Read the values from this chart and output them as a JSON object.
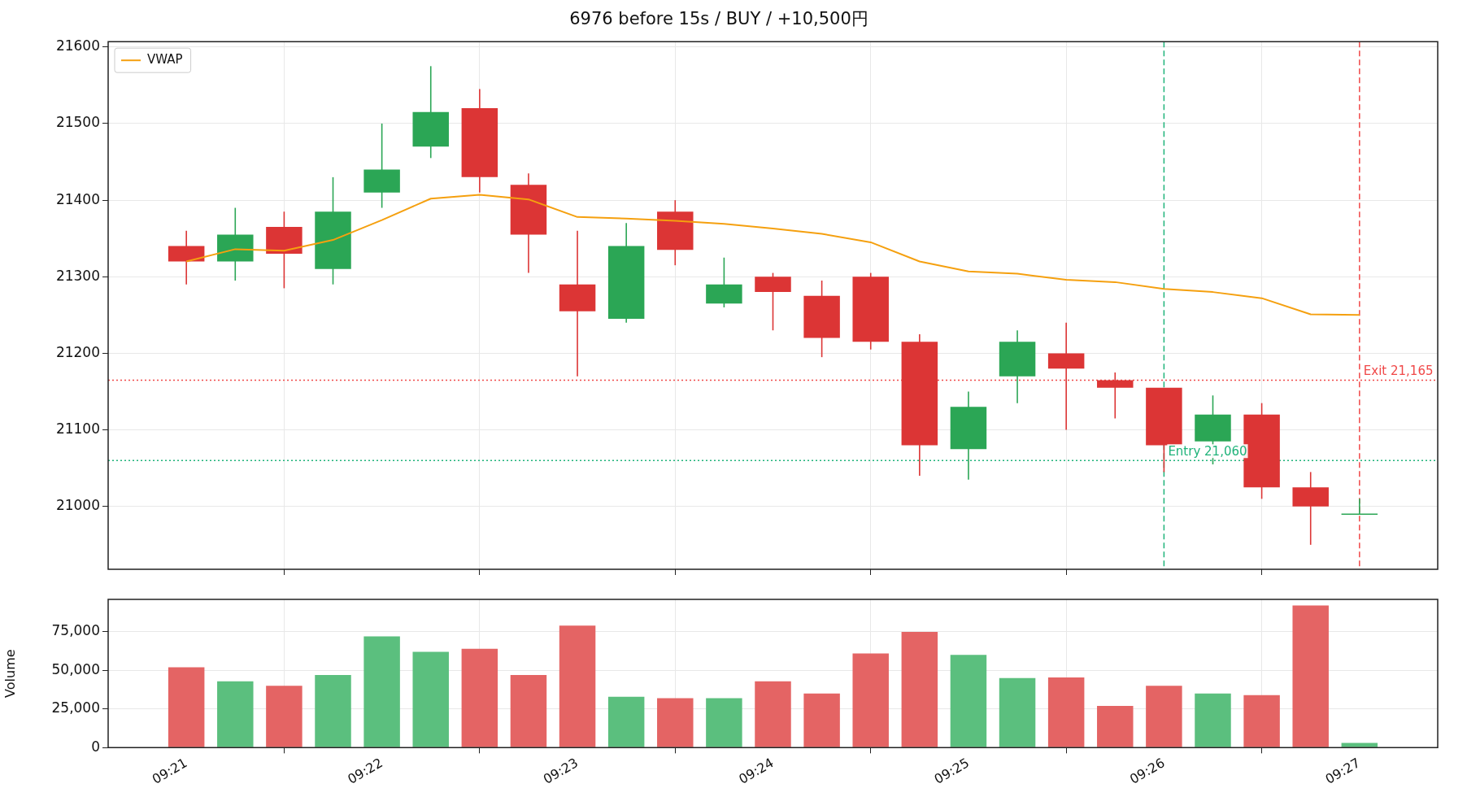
{
  "chart_data": [
    {
      "type": "candlestick",
      "title": "6976 before 15s / BUY / +10,500円",
      "categories": [
        "09:21",
        null,
        null,
        null,
        "09:22",
        null,
        null,
        null,
        "09:23",
        null,
        null,
        null,
        "09:24",
        null,
        null,
        null,
        "09:25",
        null,
        null,
        null,
        "09:26",
        null,
        null,
        null,
        "09:27"
      ],
      "ohlc": [
        [
          21340,
          21360,
          21290,
          21320
        ],
        [
          21320,
          21390,
          21295,
          21355
        ],
        [
          21365,
          21385,
          21285,
          21330
        ],
        [
          21310,
          21430,
          21290,
          21385
        ],
        [
          21410,
          21500,
          21390,
          21440
        ],
        [
          21470,
          21575,
          21455,
          21515
        ],
        [
          21520,
          21545,
          21410,
          21430
        ],
        [
          21420,
          21435,
          21305,
          21355
        ],
        [
          21290,
          21360,
          21170,
          21255
        ],
        [
          21245,
          21370,
          21240,
          21340
        ],
        [
          21385,
          21400,
          21315,
          21335
        ],
        [
          21265,
          21325,
          21260,
          21290
        ],
        [
          21300,
          21305,
          21230,
          21280
        ],
        [
          21275,
          21295,
          21195,
          21220
        ],
        [
          21300,
          21305,
          21205,
          21215
        ],
        [
          21215,
          21225,
          21040,
          21080
        ],
        [
          21075,
          21150,
          21035,
          21130
        ],
        [
          21170,
          21230,
          21135,
          21215
        ],
        [
          21200,
          21240,
          21100,
          21180
        ],
        [
          21165,
          21175,
          21115,
          21155
        ],
        [
          21155,
          21155,
          21045,
          21080
        ],
        [
          21085,
          21145,
          21055,
          21120
        ],
        [
          21120,
          21135,
          21010,
          21025
        ],
        [
          21025,
          21045,
          20950,
          21000
        ],
        [
          20990,
          21010,
          20990,
          20990
        ]
      ],
      "colors": [
        "#dc3535",
        "#2ba655",
        "#dc3535",
        "#2ba655",
        "#2ba655",
        "#2ba655",
        "#dc3535",
        "#dc3535",
        "#dc3535",
        "#2ba655",
        "#dc3535",
        "#2ba655",
        "#dc3535",
        "#dc3535",
        "#dc3535",
        "#dc3535",
        "#2ba655",
        "#2ba655",
        "#dc3535",
        "#dc3535",
        "#dc3535",
        "#2ba655",
        "#dc3535",
        "#dc3535",
        "#2ba655"
      ],
      "series": [
        {
          "name": "VWAP",
          "type": "line",
          "color": "#f5a00f",
          "values": [
            21320,
            21336,
            21334,
            21348,
            21374,
            21402,
            21407,
            21401,
            21378,
            21376,
            21373,
            21369,
            21363,
            21356,
            21345,
            21320,
            21307,
            21304,
            21296,
            21293,
            21284,
            21280,
            21272,
            21251,
            21250
          ]
        }
      ],
      "ylim": [
        20918,
        21607
      ],
      "yticks": [
        21000,
        21100,
        21200,
        21300,
        21400,
        21500,
        21600
      ],
      "grid": true,
      "legend": "top left",
      "tick_labels": "y",
      "marker": "none",
      "line_style": "solid",
      "ref_lines": [
        {
          "axis": "y",
          "value": 21165,
          "color": "#f04848",
          "line_style": "dotted"
        },
        {
          "axis": "y",
          "value": 21060,
          "color": "#1fb37a",
          "line_style": "dotted"
        },
        {
          "axis": "x",
          "value": "09:26",
          "color": "#1fb37a",
          "line_style": "dashed"
        },
        {
          "axis": "x",
          "value": "09:27",
          "color": "#f04848",
          "line_style": "dashed"
        }
      ],
      "annotations": [
        {
          "text": "Entry 21,060",
          "x": "09:26",
          "y": 21060
        },
        {
          "text": "Exit 21,165",
          "x": "09:27",
          "y": 21165
        }
      ]
    },
    {
      "type": "bar",
      "ylabel": "Volume",
      "categories": [
        "09:21",
        null,
        null,
        null,
        "09:22",
        null,
        null,
        null,
        "09:23",
        null,
        null,
        null,
        "09:24",
        null,
        null,
        null,
        "09:25",
        null,
        null,
        null,
        "09:26",
        null,
        null,
        null,
        "09:27"
      ],
      "values": [
        52000,
        43000,
        40000,
        47000,
        72000,
        62000,
        64000,
        47000,
        79000,
        33000,
        32000,
        32000,
        43000,
        35000,
        61000,
        75000,
        60000,
        45000,
        45500,
        27000,
        40000,
        35000,
        34000,
        92000,
        3000
      ],
      "colors": [
        "#e46464",
        "#5bbf7e",
        "#e46464",
        "#5bbf7e",
        "#5bbf7e",
        "#5bbf7e",
        "#e46464",
        "#e46464",
        "#e46464",
        "#5bbf7e",
        "#e46464",
        "#5bbf7e",
        "#e46464",
        "#e46464",
        "#e46464",
        "#e46464",
        "#5bbf7e",
        "#5bbf7e",
        "#e46464",
        "#e46464",
        "#e46464",
        "#5bbf7e",
        "#e46464",
        "#e46464",
        "#5bbf7e"
      ],
      "ylim": [
        0,
        96000
      ],
      "yticks": [
        0,
        {
          "value": 25000,
          "label": "25,000"
        },
        {
          "value": 50000,
          "label": "50,000"
        },
        {
          "value": 75000,
          "label": "75,000"
        }
      ],
      "grid": true
    }
  ]
}
